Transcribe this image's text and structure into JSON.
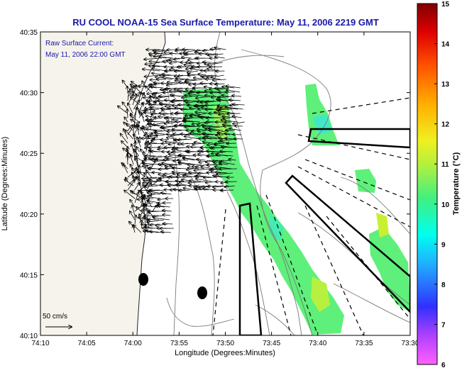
{
  "title": "RU COOL  NOAA-15  Sea Surface Temperature:  May 11, 2006 2219 GMT",
  "annotation": {
    "line1": "Raw Surface Current:",
    "line2": "May 11, 2006 22:00 GMT"
  },
  "scale_label": "50 cm/s",
  "xlabel": "Longitude (Degrees:Minutes)",
  "ylabel": "Latitude (Degrees:Minutes)",
  "x_ticks": [
    "74:10",
    "74:05",
    "74:00",
    "73:55",
    "73:50",
    "73:45",
    "73:40",
    "73:35",
    "73:30"
  ],
  "y_ticks": [
    "40:10",
    "40:15",
    "40:20",
    "40:25",
    "40:30",
    "40:35"
  ],
  "colorbar": {
    "label": "Temperature (°C)",
    "ticks": [
      "6",
      "7",
      "8",
      "9",
      "10",
      "11",
      "12",
      "13",
      "14",
      "15"
    ],
    "min": 6,
    "max": 15
  },
  "colors": {
    "title": "#1a1aa8",
    "annotation": "#1a1aa8",
    "land": "#f6f3ec",
    "sst_mid": "#5ef07a"
  }
}
